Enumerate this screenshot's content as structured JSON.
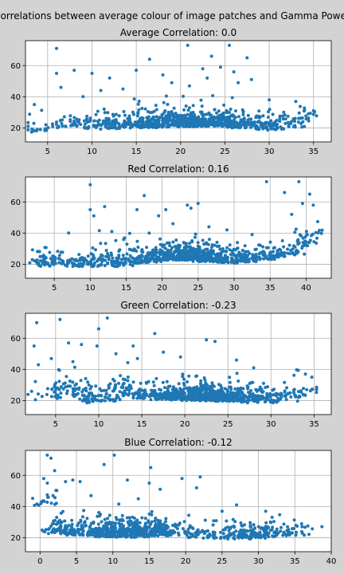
{
  "figure": {
    "suptitle": "Correlations between average colour of image patches and Gamma Power",
    "background": "#d3d3d3",
    "point_color": "#1f77b4"
  },
  "chart_data": [
    {
      "type": "scatter",
      "title": "Average Correlation: 0.0",
      "xlim": [
        2.5,
        37
      ],
      "ylim": [
        11,
        76
      ],
      "xticks": [
        5,
        10,
        15,
        20,
        25,
        30,
        35
      ],
      "yticks": [
        20,
        40,
        60
      ],
      "grid": true,
      "clusters": [
        {
          "x": 3.5,
          "y": 20.5,
          "n": 12
        },
        {
          "x": 5,
          "y": 21.5,
          "n": 8
        },
        {
          "x": 7,
          "y": 23,
          "n": 18
        },
        {
          "x": 9,
          "y": 23,
          "n": 26
        },
        {
          "x": 11,
          "y": 22.5,
          "n": 34
        },
        {
          "x": 13,
          "y": 23,
          "n": 48
        },
        {
          "x": 15,
          "y": 23.5,
          "n": 55
        },
        {
          "x": 17,
          "y": 23.5,
          "n": 75
        },
        {
          "x": 19,
          "y": 24,
          "n": 95
        },
        {
          "x": 21,
          "y": 24,
          "n": 110
        },
        {
          "x": 23,
          "y": 24.5,
          "n": 110
        },
        {
          "x": 25,
          "y": 24,
          "n": 90
        },
        {
          "x": 27,
          "y": 23.5,
          "n": 70
        },
        {
          "x": 29,
          "y": 22.5,
          "n": 50
        },
        {
          "x": 31,
          "y": 22,
          "n": 35
        },
        {
          "x": 33,
          "y": 24,
          "n": 28
        },
        {
          "x": 34.5,
          "y": 29,
          "n": 8
        }
      ],
      "outliers": [
        {
          "x": 6,
          "y": 71
        },
        {
          "x": 6,
          "y": 55
        },
        {
          "x": 8,
          "y": 57
        },
        {
          "x": 10,
          "y": 55
        },
        {
          "x": 12,
          "y": 52
        },
        {
          "x": 15,
          "y": 57
        },
        {
          "x": 16.5,
          "y": 64
        },
        {
          "x": 19,
          "y": 49
        },
        {
          "x": 20.8,
          "y": 73
        },
        {
          "x": 22.5,
          "y": 58
        },
        {
          "x": 23.5,
          "y": 66
        },
        {
          "x": 24.5,
          "y": 59
        },
        {
          "x": 25.5,
          "y": 73
        },
        {
          "x": 26,
          "y": 56
        },
        {
          "x": 27.5,
          "y": 65
        },
        {
          "x": 28,
          "y": 51
        },
        {
          "x": 26.5,
          "y": 49
        },
        {
          "x": 18,
          "y": 54
        },
        {
          "x": 21,
          "y": 47
        },
        {
          "x": 23,
          "y": 52
        },
        {
          "x": 3.5,
          "y": 35
        },
        {
          "x": 9,
          "y": 40
        },
        {
          "x": 13.5,
          "y": 45
        },
        {
          "x": 30,
          "y": 38
        },
        {
          "x": 33,
          "y": 37
        },
        {
          "x": 35,
          "y": 31
        },
        {
          "x": 6.5,
          "y": 46
        },
        {
          "x": 11,
          "y": 44
        }
      ]
    },
    {
      "type": "scatter",
      "title": "Red Correlation: 0.16",
      "xlim": [
        1,
        43.5
      ],
      "ylim": [
        11,
        76
      ],
      "xticks": [
        5,
        10,
        15,
        20,
        25,
        30,
        35,
        40
      ],
      "yticks": [
        20,
        40,
        60
      ],
      "grid": true,
      "clusters": [
        {
          "x": 3.5,
          "y": 22,
          "n": 45
        },
        {
          "x": 6,
          "y": 22,
          "n": 30
        },
        {
          "x": 8.5,
          "y": 22,
          "n": 25
        },
        {
          "x": 10.5,
          "y": 22,
          "n": 40
        },
        {
          "x": 12.5,
          "y": 22,
          "n": 30
        },
        {
          "x": 14.5,
          "y": 22.5,
          "n": 35
        },
        {
          "x": 16.5,
          "y": 24,
          "n": 45
        },
        {
          "x": 18.5,
          "y": 24.5,
          "n": 60
        },
        {
          "x": 20.5,
          "y": 26,
          "n": 75
        },
        {
          "x": 22.5,
          "y": 26,
          "n": 95
        },
        {
          "x": 24.5,
          "y": 26,
          "n": 110
        },
        {
          "x": 26,
          "y": 25,
          "n": 95
        },
        {
          "x": 28,
          "y": 24.5,
          "n": 60
        },
        {
          "x": 30,
          "y": 24,
          "n": 45
        },
        {
          "x": 32,
          "y": 25,
          "n": 40
        },
        {
          "x": 34,
          "y": 26,
          "n": 40
        },
        {
          "x": 36,
          "y": 27,
          "n": 30
        },
        {
          "x": 38,
          "y": 29,
          "n": 25
        },
        {
          "x": 40,
          "y": 35,
          "n": 25
        },
        {
          "x": 41.5,
          "y": 40,
          "n": 10
        }
      ],
      "outliers": [
        {
          "x": 10,
          "y": 71
        },
        {
          "x": 10,
          "y": 55
        },
        {
          "x": 10.5,
          "y": 51
        },
        {
          "x": 12,
          "y": 57
        },
        {
          "x": 17.5,
          "y": 64
        },
        {
          "x": 16.5,
          "y": 55
        },
        {
          "x": 19.5,
          "y": 51
        },
        {
          "x": 20.5,
          "y": 55
        },
        {
          "x": 23.5,
          "y": 58
        },
        {
          "x": 24,
          "y": 56
        },
        {
          "x": 25,
          "y": 59
        },
        {
          "x": 34.5,
          "y": 73
        },
        {
          "x": 37,
          "y": 66
        },
        {
          "x": 39,
          "y": 73
        },
        {
          "x": 40.5,
          "y": 65
        },
        {
          "x": 39.5,
          "y": 59
        },
        {
          "x": 41,
          "y": 58
        },
        {
          "x": 38,
          "y": 52
        },
        {
          "x": 21.5,
          "y": 46
        },
        {
          "x": 26.5,
          "y": 44
        },
        {
          "x": 13,
          "y": 41
        },
        {
          "x": 7,
          "y": 40
        },
        {
          "x": 29,
          "y": 42
        },
        {
          "x": 32.5,
          "y": 39
        }
      ]
    },
    {
      "type": "scatter",
      "title": "Green Correlation: -0.23",
      "xlim": [
        1.5,
        37
      ],
      "ylim": [
        11,
        76
      ],
      "xticks": [
        5,
        10,
        15,
        20,
        25,
        30,
        35
      ],
      "yticks": [
        20,
        40,
        60
      ],
      "grid": true,
      "clusters": [
        {
          "x": 4.5,
          "y": 24,
          "n": 25
        },
        {
          "x": 6,
          "y": 29,
          "n": 25
        },
        {
          "x": 7.5,
          "y": 26,
          "n": 25
        },
        {
          "x": 9,
          "y": 22,
          "n": 35
        },
        {
          "x": 11,
          "y": 23,
          "n": 35
        },
        {
          "x": 13,
          "y": 26,
          "n": 35
        },
        {
          "x": 15,
          "y": 25,
          "n": 40
        },
        {
          "x": 17,
          "y": 24,
          "n": 60
        },
        {
          "x": 19,
          "y": 24,
          "n": 95
        },
        {
          "x": 21,
          "y": 23.5,
          "n": 120
        },
        {
          "x": 23,
          "y": 23,
          "n": 110
        },
        {
          "x": 25,
          "y": 23,
          "n": 95
        },
        {
          "x": 27,
          "y": 22.5,
          "n": 70
        },
        {
          "x": 29,
          "y": 22,
          "n": 45
        },
        {
          "x": 31,
          "y": 23,
          "n": 30
        },
        {
          "x": 33,
          "y": 25.5,
          "n": 25
        },
        {
          "x": 35,
          "y": 29,
          "n": 8
        }
      ],
      "outliers": [
        {
          "x": 2.8,
          "y": 70
        },
        {
          "x": 2.5,
          "y": 55
        },
        {
          "x": 5.5,
          "y": 72
        },
        {
          "x": 6.5,
          "y": 57
        },
        {
          "x": 8,
          "y": 56
        },
        {
          "x": 9.8,
          "y": 55
        },
        {
          "x": 10,
          "y": 66
        },
        {
          "x": 11,
          "y": 73
        },
        {
          "x": 14,
          "y": 55
        },
        {
          "x": 14.5,
          "y": 47
        },
        {
          "x": 16.5,
          "y": 63
        },
        {
          "x": 19.5,
          "y": 48
        },
        {
          "x": 22.5,
          "y": 59
        },
        {
          "x": 23.5,
          "y": 58
        },
        {
          "x": 26,
          "y": 46
        },
        {
          "x": 3,
          "y": 43
        },
        {
          "x": 4.5,
          "y": 47
        },
        {
          "x": 12,
          "y": 50
        },
        {
          "x": 17.5,
          "y": 51
        },
        {
          "x": 7,
          "y": 45
        },
        {
          "x": 28,
          "y": 41
        },
        {
          "x": 34,
          "y": 37
        }
      ]
    },
    {
      "type": "scatter",
      "title": "Blue Correlation: -0.12",
      "xlim": [
        -2,
        40
      ],
      "ylim": [
        11,
        76
      ],
      "xticks": [
        0,
        5,
        10,
        15,
        20,
        25,
        30,
        35,
        40
      ],
      "yticks": [
        20,
        40,
        60
      ],
      "grid": true,
      "clusters": [
        {
          "x": 0.8,
          "y": 44,
          "n": 20
        },
        {
          "x": 2.5,
          "y": 26,
          "n": 60
        },
        {
          "x": 4.5,
          "y": 25,
          "n": 45
        },
        {
          "x": 6.5,
          "y": 25,
          "n": 45
        },
        {
          "x": 8.5,
          "y": 24,
          "n": 75
        },
        {
          "x": 10.5,
          "y": 24,
          "n": 85
        },
        {
          "x": 12.5,
          "y": 23.5,
          "n": 95
        },
        {
          "x": 14.5,
          "y": 24,
          "n": 105
        },
        {
          "x": 16.5,
          "y": 25,
          "n": 65
        },
        {
          "x": 18.5,
          "y": 24,
          "n": 30
        },
        {
          "x": 21,
          "y": 23.5,
          "n": 25
        },
        {
          "x": 23.5,
          "y": 23,
          "n": 30
        },
        {
          "x": 26,
          "y": 23,
          "n": 28
        },
        {
          "x": 28,
          "y": 22.5,
          "n": 45
        },
        {
          "x": 30,
          "y": 23,
          "n": 45
        },
        {
          "x": 32,
          "y": 24,
          "n": 35
        },
        {
          "x": 34.5,
          "y": 25,
          "n": 25
        },
        {
          "x": 37,
          "y": 25,
          "n": 8
        }
      ],
      "outliers": [
        {
          "x": 1,
          "y": 73
        },
        {
          "x": 1.5,
          "y": 71
        },
        {
          "x": 0.5,
          "y": 58
        },
        {
          "x": 1,
          "y": 55
        },
        {
          "x": 3.5,
          "y": 56
        },
        {
          "x": 4.5,
          "y": 57
        },
        {
          "x": 5.5,
          "y": 56
        },
        {
          "x": 8.8,
          "y": 67
        },
        {
          "x": 10.2,
          "y": 73
        },
        {
          "x": 12,
          "y": 57
        },
        {
          "x": 15.2,
          "y": 65
        },
        {
          "x": 15,
          "y": 55
        },
        {
          "x": 16.5,
          "y": 51
        },
        {
          "x": 19.5,
          "y": 58
        },
        {
          "x": 22,
          "y": 59
        },
        {
          "x": 21.5,
          "y": 52
        },
        {
          "x": 27,
          "y": 41
        },
        {
          "x": 25,
          "y": 37
        },
        {
          "x": 2,
          "y": 63
        },
        {
          "x": 7,
          "y": 47
        },
        {
          "x": 13.5,
          "y": 45
        },
        {
          "x": 31,
          "y": 37
        }
      ]
    }
  ]
}
